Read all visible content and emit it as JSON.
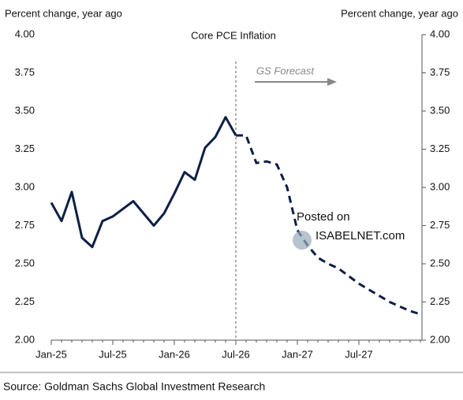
{
  "chart_data": {
    "type": "line",
    "title": "Core PCE Inflation",
    "y_label": "Percent change, year ago",
    "y2_label": "Percent change, year ago",
    "categories": [
      "Jan-25",
      null,
      null,
      null,
      null,
      null,
      "Jul-25",
      null,
      null,
      null,
      null,
      null,
      "Jan-26",
      null,
      null,
      null,
      null,
      null,
      "Jul-26",
      null,
      null,
      null,
      null,
      null,
      "Jan-27",
      null,
      null,
      null,
      null,
      null,
      "Jul-27",
      null,
      null,
      null,
      null,
      null,
      null
    ],
    "series": [
      {
        "color": "#0d1f45",
        "dashed": false,
        "values": [
          2.9,
          2.78,
          2.97,
          2.67,
          2.61,
          2.78,
          2.81,
          2.86,
          2.91,
          2.83,
          2.75,
          2.83,
          2.96,
          3.1,
          3.05,
          3.26,
          3.33,
          3.46,
          3.34,
          null,
          null,
          null,
          null,
          null,
          null,
          null,
          null,
          null,
          null,
          null,
          null,
          null,
          null,
          null,
          null,
          null,
          null
        ]
      },
      {
        "color": "#0d1f45",
        "dashed": true,
        "values": [
          null,
          null,
          null,
          null,
          null,
          null,
          null,
          null,
          null,
          null,
          null,
          null,
          null,
          null,
          null,
          null,
          null,
          null,
          3.34,
          3.34,
          3.16,
          3.17,
          3.15,
          3.0,
          2.72,
          2.62,
          2.54,
          2.5,
          2.47,
          2.42,
          2.37,
          2.33,
          2.29,
          2.25,
          2.22,
          2.19,
          2.17
        ]
      }
    ],
    "ylim": [
      2.0,
      4.0
    ],
    "yticks": [
      {
        "value": 2.0,
        "label": "2.00"
      },
      {
        "value": 2.25,
        "label": "2.25"
      },
      {
        "value": 2.5,
        "label": "2.50"
      },
      {
        "value": 2.75,
        "label": "2.75"
      },
      {
        "value": 3.0,
        "label": "3.00"
      },
      {
        "value": 3.25,
        "label": "3.25"
      },
      {
        "value": 3.5,
        "label": "3.50"
      },
      {
        "value": 3.75,
        "label": "3.75"
      },
      {
        "value": 4.0,
        "label": "4.00"
      }
    ],
    "y2lim": [
      2.0,
      4.0
    ],
    "y2ticks": [
      {
        "value": 2.0,
        "label": "2.00"
      },
      {
        "value": 2.25,
        "label": "2.25"
      },
      {
        "value": 2.5,
        "label": "2.50"
      },
      {
        "value": 2.75,
        "label": "2.75"
      },
      {
        "value": 3.0,
        "label": "3.00"
      },
      {
        "value": 3.25,
        "label": "3.25"
      },
      {
        "value": 3.5,
        "label": "3.50"
      },
      {
        "value": 3.75,
        "label": "3.75"
      },
      {
        "value": 4.0,
        "label": "4.00"
      }
    ],
    "grid": false,
    "forecast_start": "Jul-26",
    "forecast_label": "GS Forecast",
    "watermark": [
      "Posted on",
      "ISABELNET.com"
    ],
    "source": "Source: Goldman Sachs Global Investment Research"
  }
}
